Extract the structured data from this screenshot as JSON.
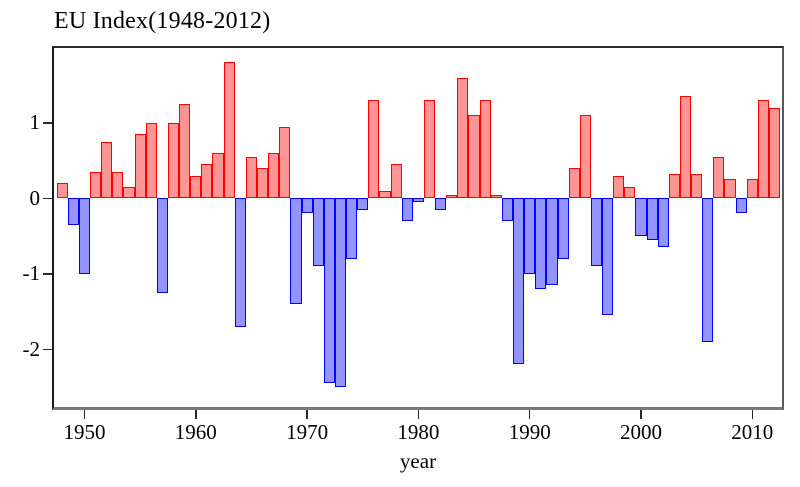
{
  "title": "EU Index(1948-2012)",
  "axes": {
    "x_label": "year"
  },
  "chart_data": {
    "type": "bar",
    "title": "EU Index(1948-2012)",
    "xlabel": "year",
    "ylabel": "",
    "categories": [
      1948,
      1949,
      1950,
      1951,
      1952,
      1953,
      1954,
      1955,
      1956,
      1957,
      1958,
      1959,
      1960,
      1961,
      1962,
      1963,
      1964,
      1965,
      1966,
      1967,
      1968,
      1969,
      1970,
      1971,
      1972,
      1973,
      1974,
      1975,
      1976,
      1977,
      1978,
      1979,
      1980,
      1981,
      1982,
      1983,
      1984,
      1985,
      1986,
      1987,
      1988,
      1989,
      1990,
      1991,
      1992,
      1993,
      1994,
      1995,
      1996,
      1997,
      1998,
      1999,
      2000,
      2001,
      2002,
      2003,
      2004,
      2005,
      2006,
      2007,
      2008,
      2009,
      2010,
      2011,
      2012
    ],
    "values": [
      0.2,
      -0.35,
      -1.0,
      0.35,
      0.75,
      0.35,
      0.15,
      0.85,
      1.0,
      -1.25,
      1.0,
      1.25,
      0.3,
      0.45,
      0.6,
      1.8,
      -1.7,
      0.55,
      0.4,
      0.6,
      0.95,
      -1.4,
      -0.2,
      -0.9,
      -2.45,
      -2.5,
      -0.8,
      -0.15,
      1.3,
      0.1,
      0.45,
      -0.3,
      -0.05,
      1.3,
      -0.15,
      0.05,
      1.6,
      1.1,
      1.3,
      0.05,
      -0.3,
      -2.2,
      -1.0,
      -1.2,
      -1.15,
      -0.8,
      0.4,
      1.1,
      -0.9,
      -1.55,
      0.3,
      0.15,
      -0.5,
      -0.55,
      -0.65,
      0.32,
      1.35,
      0.32,
      -1.9,
      0.55,
      0.25,
      -0.2,
      0.25,
      1.3,
      1.2
    ],
    "xticks": [
      1950,
      1960,
      1970,
      1980,
      1990,
      2000,
      2010
    ],
    "yticks": [
      1,
      0,
      -1,
      -2
    ],
    "ylim": [
      -2.8,
      2.0
    ],
    "grid": false,
    "positive_fill": "#FF9494",
    "positive_border": "#FF0000",
    "negative_fill": "#9494FF",
    "negative_border": "#0000FF"
  }
}
